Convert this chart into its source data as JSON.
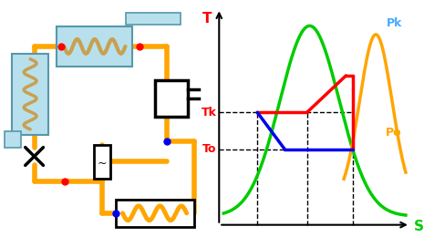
{
  "fig_width": 4.65,
  "fig_height": 2.6,
  "dpi": 100,
  "orange": "#FFA500",
  "light_blue": "#B8E0EC",
  "blue": "#0000EE",
  "red": "#FF0000",
  "green": "#00CC00",
  "coil_color": "#C8A050",
  "bg": "#FFFFFF",
  "tk_label": "Tk",
  "to_label": "To",
  "t_label": "T",
  "s_label": "S",
  "pk_label": "Pk",
  "po_label": "Po",
  "pk_color": "#44AAFF",
  "po_color": "#FFA500"
}
